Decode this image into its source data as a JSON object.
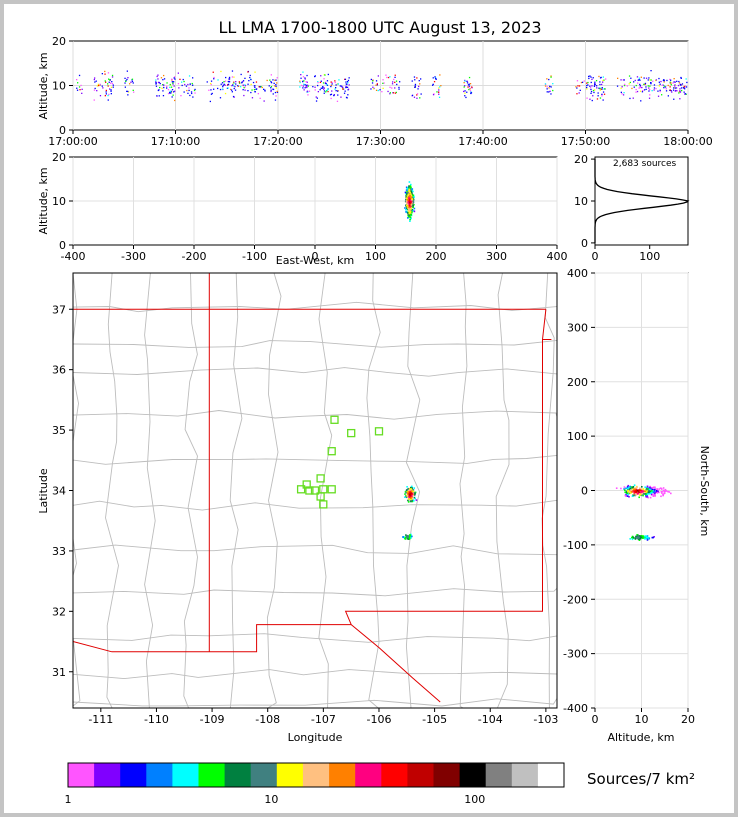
{
  "chart_data": {
    "type": "lightning-mapping-array",
    "title": "LL LMA 1700-1800 UTC August 13, 2023",
    "time_altitude": {
      "ylabel": "Altitude, km",
      "ylim": [
        0,
        20
      ],
      "yticks": [
        "0",
        "10",
        "20"
      ],
      "xticks": [
        "17:00:00",
        "17:10:00",
        "17:20:00",
        "17:30:00",
        "17:40:00",
        "17:50:00",
        "18:00:00"
      ],
      "active_minutes": [
        0,
        2,
        3,
        5,
        8,
        9,
        10,
        11,
        13,
        14,
        15,
        16,
        17,
        18,
        19,
        22,
        23,
        24,
        25,
        26,
        29,
        30,
        31,
        33,
        35,
        38,
        46,
        49,
        50,
        51,
        53,
        54,
        55,
        56,
        57,
        58,
        59
      ]
    },
    "east_west": {
      "xlabel": "East-West, km",
      "ylabel": "Altitude, km",
      "xticks": [
        "-400",
        "-300",
        "-200",
        "-100",
        "0",
        "100",
        "200",
        "300",
        "400"
      ],
      "yticks": [
        "0",
        "10",
        "20"
      ],
      "cluster_center_km": 155
    },
    "histogram": {
      "annotation": "2,683 sources",
      "xticks": [
        "0",
        "100"
      ],
      "yticks": [
        "0",
        "10",
        "20"
      ],
      "peak_altitude_km": 10,
      "peak_count": 170
    },
    "plan_view": {
      "xlabel": "Longitude",
      "ylabel": "Latitude",
      "xticks": [
        "-111",
        "-110",
        "-109",
        "-108",
        "-107",
        "-106",
        "-105",
        "-104",
        "-103"
      ],
      "yticks": [
        "31",
        "32",
        "33",
        "34",
        "35",
        "36",
        "37"
      ],
      "xlim": [
        -111.5,
        -102.8
      ],
      "ylim": [
        30.4,
        37.6
      ],
      "stations": [
        {
          "lon": -106.8,
          "lat": 35.17
        },
        {
          "lon": -106.5,
          "lat": 34.95
        },
        {
          "lon": -106.0,
          "lat": 34.98
        },
        {
          "lon": -106.85,
          "lat": 34.65
        },
        {
          "lon": -107.05,
          "lat": 34.2
        },
        {
          "lon": -107.3,
          "lat": 34.1
        },
        {
          "lon": -107.4,
          "lat": 34.02
        },
        {
          "lon": -107.15,
          "lat": 34.0
        },
        {
          "lon": -107.25,
          "lat": 34.0
        },
        {
          "lon": -107.0,
          "lat": 34.02
        },
        {
          "lon": -106.85,
          "lat": 34.02
        },
        {
          "lon": -107.05,
          "lat": 33.9
        },
        {
          "lon": -107.0,
          "lat": 33.77
        }
      ],
      "source_clusters": [
        {
          "lon": -105.45,
          "lat": 33.95
        },
        {
          "lon": -105.5,
          "lat": 33.25
        }
      ]
    },
    "north_south": {
      "xlabel": "Altitude, km",
      "ylabel": "North-South, km",
      "xticks": [
        "0",
        "10",
        "20"
      ],
      "yticks": [
        "400",
        "300",
        "200",
        "100",
        "0",
        "-100",
        "-200",
        "-300",
        "-400"
      ]
    },
    "colorbar": {
      "label": "Sources/7 km²",
      "ticks": [
        "1",
        "10",
        "100"
      ],
      "colors": [
        "#ff55ff",
        "#8000ff",
        "#0000ff",
        "#0080ff",
        "#00ffff",
        "#00ff00",
        "#008040",
        "#408080",
        "#ffff00",
        "#ffc080",
        "#ff8000",
        "#ff0080",
        "#ff0000",
        "#c00000",
        "#800000",
        "#000000",
        "#808080",
        "#c0c0c0",
        "#ffffff"
      ]
    }
  }
}
